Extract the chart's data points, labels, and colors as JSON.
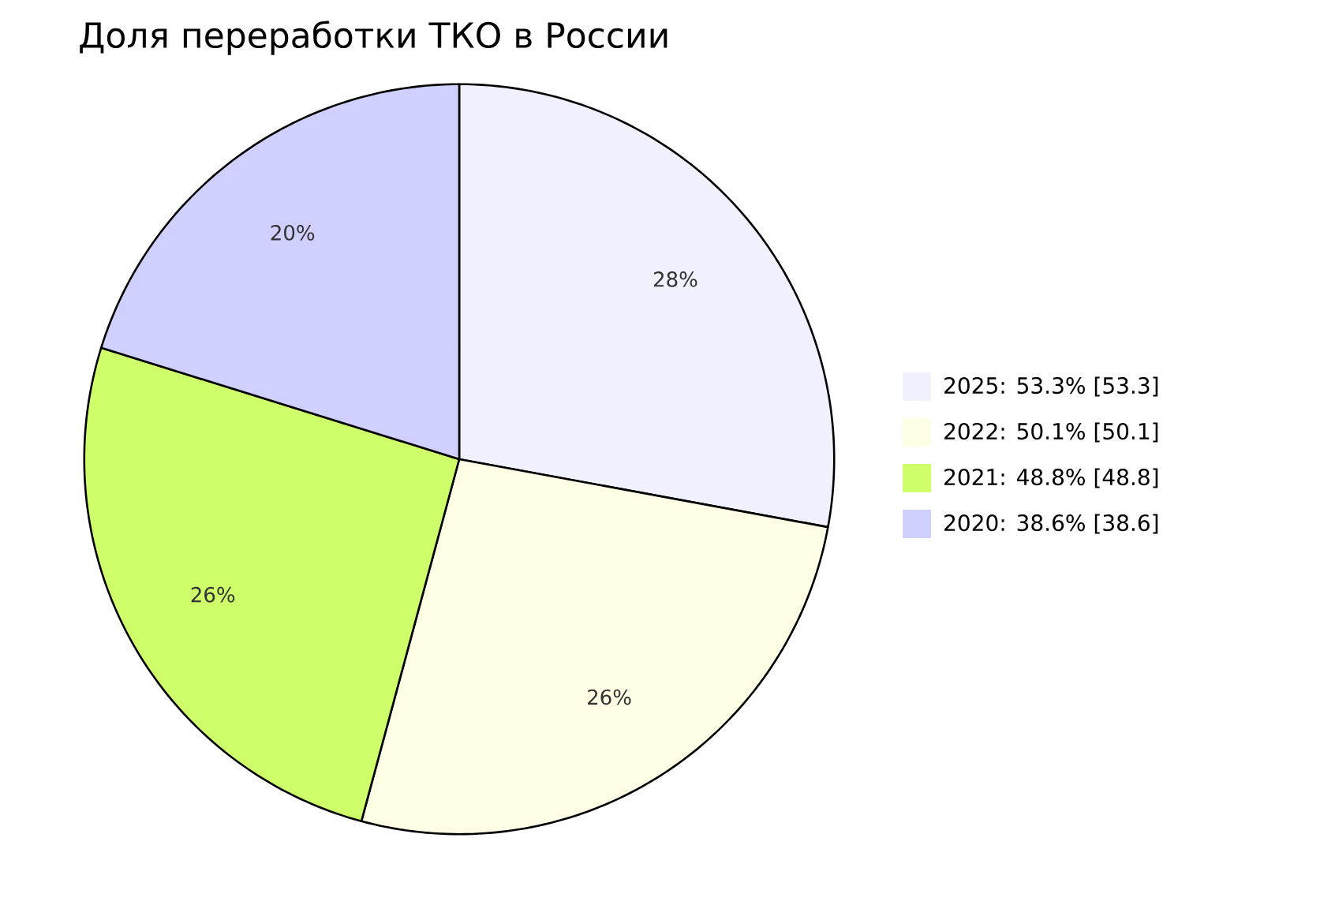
{
  "chart_data": {
    "type": "pie",
    "title": "Доля переработки ТКО в России",
    "categories": [
      "2025: 53.3% [53.3]",
      "2022: 50.1% [50.1]",
      "2021: 48.8% [48.8]",
      "2020: 38.6% [38.6]"
    ],
    "values": [
      27.9,
      26.3,
      25.6,
      20.2
    ],
    "colors": [
      "#f0f0fe",
      "#ffffe6",
      "#ceff6a",
      "#d0d0ff"
    ],
    "value_labels": [
      "28%",
      "26%",
      "26%",
      "20%"
    ],
    "legend": "right"
  }
}
